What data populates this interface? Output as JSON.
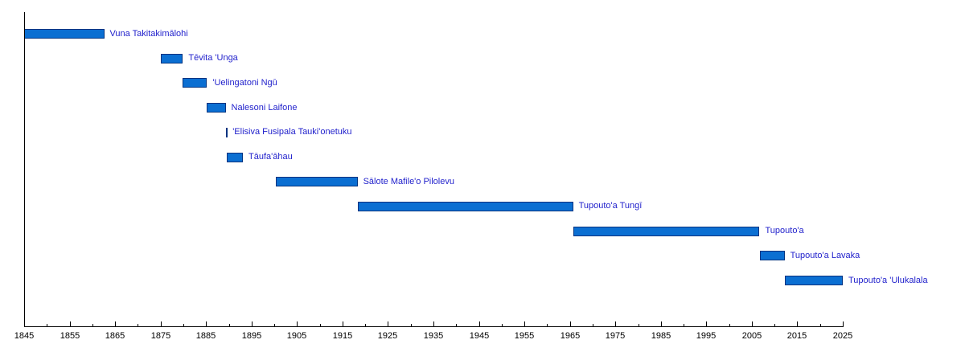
{
  "page": {
    "background_color": "#ffffff"
  },
  "chart_data": {
    "type": "bar",
    "variant": "horizontal-timeline",
    "title": "",
    "xlabel": "",
    "ylabel": "",
    "xlim": [
      1845,
      2025
    ],
    "x_major_tick_step": 10,
    "x_minor_tick_step": 5,
    "x_tick_labels": [
      "1845",
      "1855",
      "1865",
      "1875",
      "1885",
      "1895",
      "1905",
      "1915",
      "1925",
      "1935",
      "1945",
      "1955",
      "1965",
      "1975",
      "1985",
      "1995",
      "2005",
      "2015",
      "2025"
    ],
    "grid": false,
    "legend": false,
    "series": [
      {
        "label": "Vuna Takitakimālohi",
        "start": 1845.0,
        "end": 1862.6
      },
      {
        "label": "Tēvita 'Unga",
        "start": 1875.0,
        "end": 1879.9
      },
      {
        "label": "'Uelingatoni Ngū",
        "start": 1879.9,
        "end": 1885.2
      },
      {
        "label": "Nalesoni Laifone",
        "start": 1885.2,
        "end": 1889.3
      },
      {
        "label": "'Elisiva Fusipala Tauki'onetuku",
        "start": 1889.3,
        "end": 1889.6
      },
      {
        "label": "Tāufa'āhau",
        "start": 1889.6,
        "end": 1893.1
      },
      {
        "label": "Sālote Mafile'o Pilolevu",
        "start": 1900.3,
        "end": 1918.3
      },
      {
        "label": "Tupouto'a Tungī",
        "start": 1918.3,
        "end": 1965.7
      },
      {
        "label": "Tupouto'a",
        "start": 1965.7,
        "end": 2006.7
      },
      {
        "label": "Tupouto'a Lavaka",
        "start": 2006.7,
        "end": 2012.2
      },
      {
        "label": "Tupouto'a 'Ulukalala",
        "start": 2012.2,
        "end": 2025.0
      }
    ],
    "colors": {
      "bar_fill": "#0b6fd2",
      "bar_border": "#003380",
      "label_text": "#2222cc",
      "axis": "#000000",
      "background": "#ffffff"
    }
  }
}
